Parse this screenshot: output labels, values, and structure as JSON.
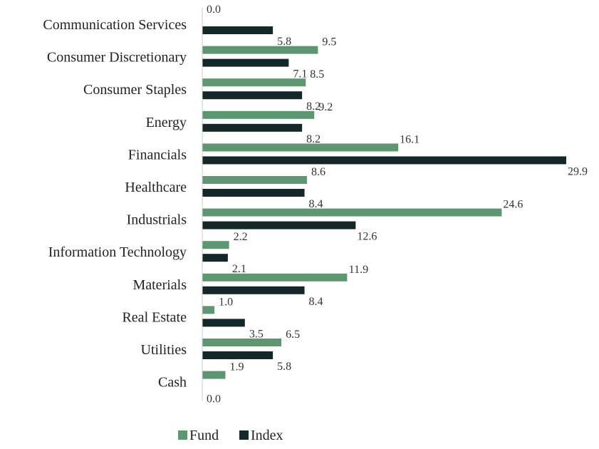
{
  "chart_data": {
    "type": "bar",
    "orientation": "horizontal",
    "categories": [
      "Communication Services",
      "Consumer Discretionary",
      "Consumer Staples",
      "Energy",
      "Financials",
      "Healthcare",
      "Industrials",
      "Information Technology",
      "Materials",
      "Real Estate",
      "Utilities",
      "Cash"
    ],
    "series": [
      {
        "name": "Fund",
        "color": "#5f9672",
        "values": [
          0.0,
          9.5,
          8.5,
          9.2,
          16.1,
          8.6,
          24.6,
          2.2,
          11.9,
          1.0,
          6.5,
          1.9
        ],
        "labels": [
          "0.0",
          "9.5",
          "8.5",
          "9.2",
          "16.1",
          "8.6",
          "24.6",
          "2.2",
          "11.9",
          "1.0",
          "6.5",
          "1.9"
        ]
      },
      {
        "name": "Index",
        "color": "#14282a",
        "values": [
          5.8,
          7.1,
          8.2,
          8.2,
          29.9,
          8.4,
          12.6,
          2.1,
          8.4,
          3.5,
          5.8,
          0.0
        ],
        "labels": [
          "5.8",
          "7.1",
          "8.2",
          "8.2",
          "29.9",
          "8.4",
          "12.6",
          "2.1",
          "8.4",
          "3.5",
          "5.8",
          "0.0"
        ]
      }
    ],
    "xlim": [
      0,
      30
    ],
    "grid": false,
    "legend_position": "bottom-center",
    "axis_color": "#cfcfcf"
  }
}
